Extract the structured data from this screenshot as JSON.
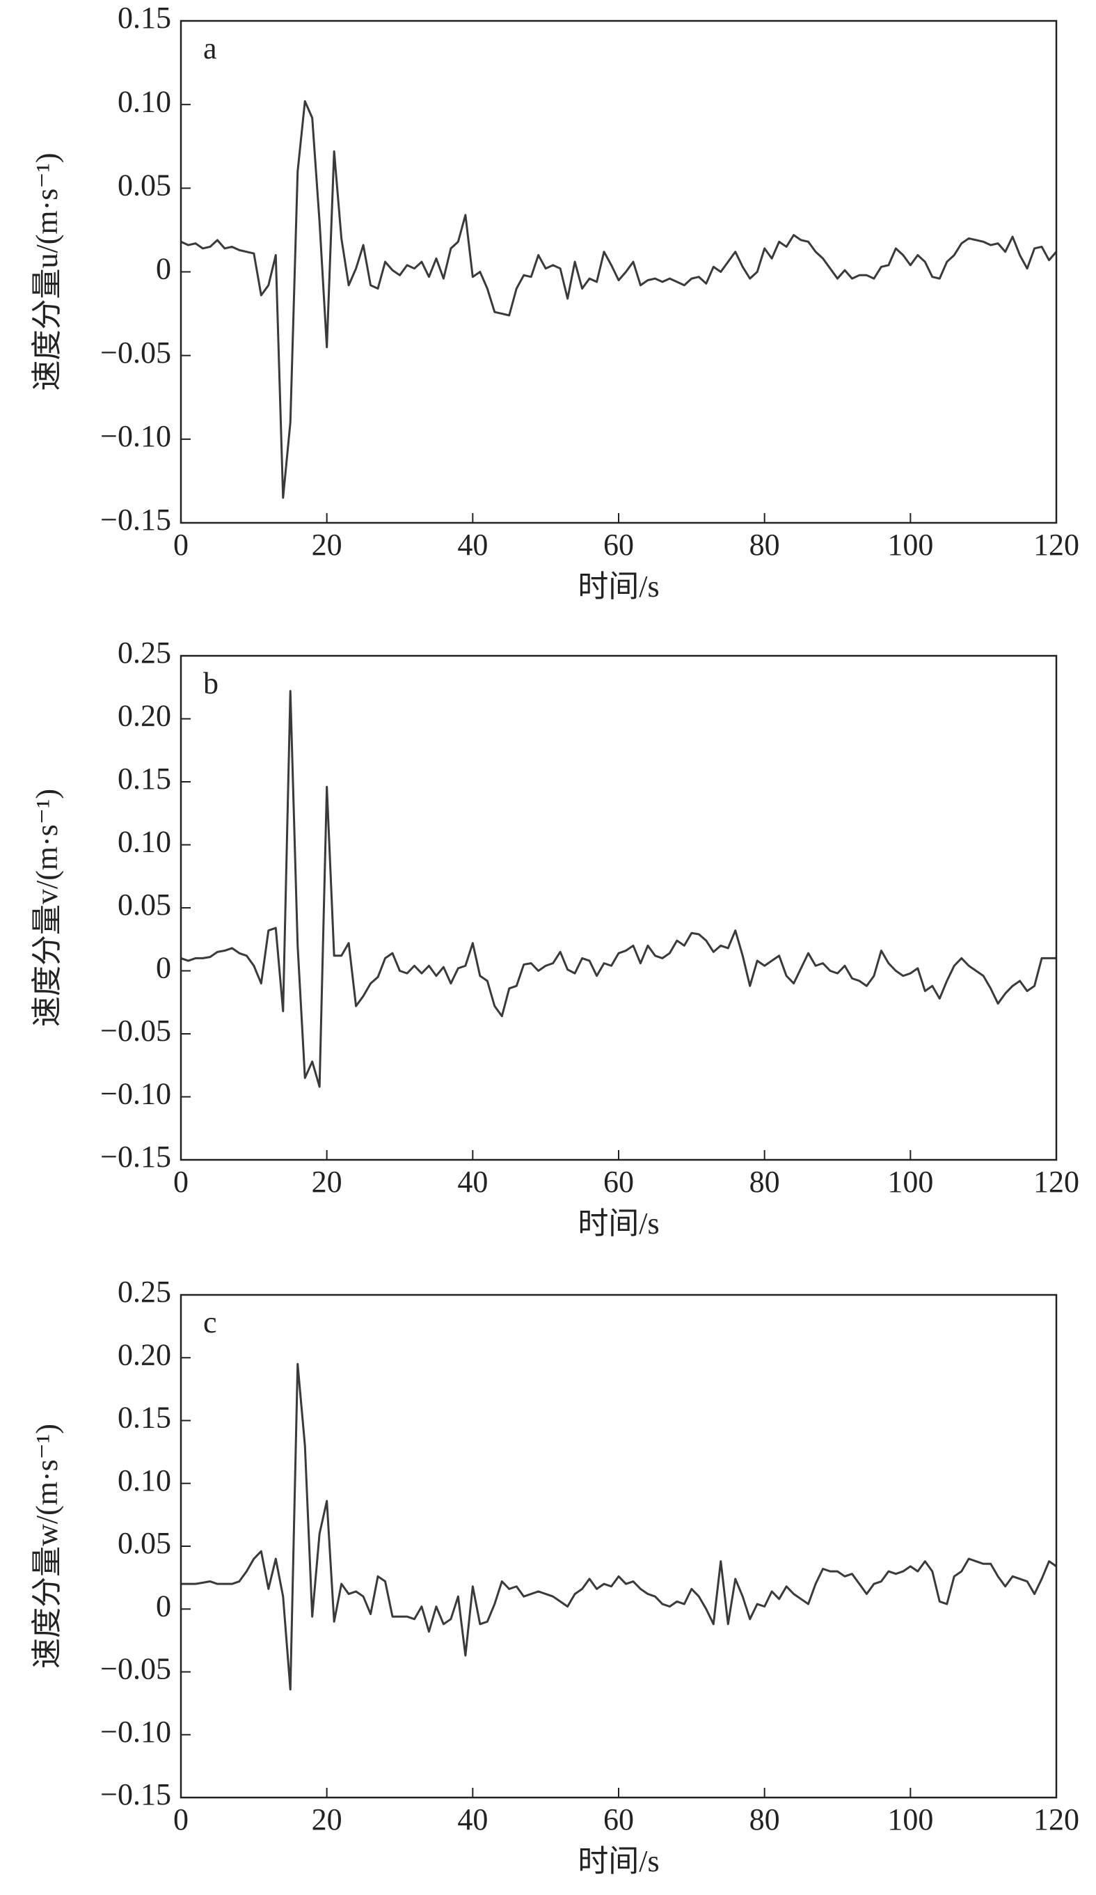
{
  "chart_data": [
    {
      "type": "line",
      "annotation": "a",
      "xlabel": "时间/s",
      "ylabel": "速度分量u/(m·s⁻¹)",
      "color": "#3a3a3a",
      "xlim": [
        0,
        120
      ],
      "xticks": [
        0,
        20,
        40,
        60,
        80,
        100,
        120
      ],
      "ylim": [
        -0.15,
        0.15
      ],
      "yticks": [
        {
          "value": -0.15,
          "label": "−0.15"
        },
        {
          "value": -0.1,
          "label": "−0.10"
        },
        {
          "value": -0.05,
          "label": "−0.05"
        },
        0,
        0.05,
        {
          "value": 0.1,
          "label": "0.10"
        },
        0.15
      ],
      "x": [
        0,
        1,
        2,
        3,
        4,
        5,
        6,
        7,
        8,
        9,
        10,
        11,
        12,
        13,
        14,
        15,
        16,
        17,
        18,
        19,
        20,
        21,
        22,
        23,
        24,
        25,
        26,
        27,
        28,
        29,
        30,
        31,
        32,
        33,
        34,
        35,
        36,
        37,
        38,
        39,
        40,
        41,
        42,
        43,
        44,
        45,
        46,
        47,
        48,
        49,
        50,
        51,
        52,
        53,
        54,
        55,
        56,
        57,
        58,
        59,
        60,
        61,
        62,
        63,
        64,
        65,
        66,
        67,
        68,
        69,
        70,
        71,
        72,
        73,
        74,
        75,
        76,
        77,
        78,
        79,
        80,
        81,
        82,
        83,
        84,
        85,
        86,
        87,
        88,
        89,
        90,
        91,
        92,
        93,
        94,
        95,
        96,
        97,
        98,
        99,
        100,
        101,
        102,
        103,
        104,
        105,
        106,
        107,
        108,
        109,
        110,
        111,
        112,
        113,
        114,
        115,
        116,
        117,
        118,
        119,
        120
      ],
      "values": [
        0.018,
        0.016,
        0.017,
        0.014,
        0.015,
        0.019,
        0.014,
        0.015,
        0.013,
        0.012,
        0.011,
        -0.014,
        -0.008,
        0.01,
        -0.135,
        -0.09,
        0.06,
        0.102,
        0.092,
        0.03,
        -0.045,
        0.072,
        0.02,
        -0.008,
        0.002,
        0.016,
        -0.008,
        -0.01,
        0.006,
        0.001,
        -0.002,
        0.004,
        0.002,
        0.006,
        -0.003,
        0.008,
        -0.004,
        0.014,
        0.018,
        0.034,
        -0.003,
        0.0,
        -0.01,
        -0.024,
        -0.025,
        -0.026,
        -0.01,
        -0.002,
        -0.003,
        0.01,
        0.002,
        0.004,
        0.002,
        -0.016,
        0.006,
        -0.01,
        -0.004,
        -0.006,
        0.012,
        0.004,
        -0.005,
        0.0,
        0.006,
        -0.008,
        -0.005,
        -0.004,
        -0.006,
        -0.004,
        -0.006,
        -0.008,
        -0.004,
        -0.003,
        -0.007,
        0.003,
        0.0,
        0.006,
        0.012,
        0.003,
        -0.004,
        0.0,
        0.014,
        0.008,
        0.018,
        0.015,
        0.022,
        0.019,
        0.018,
        0.012,
        0.008,
        0.002,
        -0.004,
        0.001,
        -0.004,
        -0.002,
        -0.002,
        -0.004,
        0.003,
        0.004,
        0.014,
        0.01,
        0.004,
        0.01,
        0.006,
        -0.003,
        -0.004,
        0.006,
        0.01,
        0.017,
        0.02,
        0.019,
        0.018,
        0.016,
        0.017,
        0.012,
        0.021,
        0.01,
        0.002,
        0.014,
        0.015,
        0.007,
        0.012
      ]
    },
    {
      "type": "line",
      "annotation": "b",
      "xlabel": "时间/s",
      "ylabel": "速度分量v/(m·s⁻¹)",
      "color": "#3a3a3a",
      "xlim": [
        0,
        120
      ],
      "xticks": [
        0,
        20,
        40,
        60,
        80,
        100,
        120
      ],
      "ylim": [
        -0.15,
        0.25
      ],
      "yticks": [
        {
          "value": -0.15,
          "label": "−0.15"
        },
        {
          "value": -0.1,
          "label": "−0.10"
        },
        {
          "value": -0.05,
          "label": "−0.05"
        },
        0,
        0.05,
        {
          "value": 0.1,
          "label": "0.10"
        },
        0.15,
        {
          "value": 0.2,
          "label": "0.20"
        },
        0.25
      ],
      "x": [
        0,
        1,
        2,
        3,
        4,
        5,
        6,
        7,
        8,
        9,
        10,
        11,
        12,
        13,
        14,
        15,
        16,
        17,
        18,
        19,
        20,
        21,
        22,
        23,
        24,
        25,
        26,
        27,
        28,
        29,
        30,
        31,
        32,
        33,
        34,
        35,
        36,
        37,
        38,
        39,
        40,
        41,
        42,
        43,
        44,
        45,
        46,
        47,
        48,
        49,
        50,
        51,
        52,
        53,
        54,
        55,
        56,
        57,
        58,
        59,
        60,
        61,
        62,
        63,
        64,
        65,
        66,
        67,
        68,
        69,
        70,
        71,
        72,
        73,
        74,
        75,
        76,
        77,
        78,
        79,
        80,
        81,
        82,
        83,
        84,
        85,
        86,
        87,
        88,
        89,
        90,
        91,
        92,
        93,
        94,
        95,
        96,
        97,
        98,
        99,
        100,
        101,
        102,
        103,
        104,
        105,
        106,
        107,
        108,
        109,
        110,
        111,
        112,
        113,
        114,
        115,
        116,
        117,
        118,
        119,
        120
      ],
      "values": [
        0.01,
        0.008,
        0.01,
        0.01,
        0.011,
        0.015,
        0.016,
        0.018,
        0.014,
        0.012,
        0.004,
        -0.01,
        0.032,
        0.034,
        -0.032,
        0.222,
        0.02,
        -0.085,
        -0.072,
        -0.092,
        0.146,
        0.012,
        0.012,
        0.022,
        -0.028,
        -0.02,
        -0.01,
        -0.005,
        0.01,
        0.014,
        0.0,
        -0.002,
        0.004,
        -0.002,
        0.004,
        -0.004,
        0.003,
        -0.01,
        0.002,
        0.004,
        0.022,
        -0.004,
        -0.008,
        -0.028,
        -0.036,
        -0.014,
        -0.012,
        0.005,
        0.006,
        0.0,
        0.004,
        0.006,
        0.015,
        0.001,
        -0.002,
        0.01,
        0.008,
        -0.004,
        0.006,
        0.004,
        0.014,
        0.016,
        0.02,
        0.006,
        0.02,
        0.012,
        0.01,
        0.014,
        0.024,
        0.02,
        0.03,
        0.029,
        0.024,
        0.015,
        0.02,
        0.018,
        0.032,
        0.012,
        -0.012,
        0.008,
        0.004,
        0.008,
        0.012,
        -0.004,
        -0.01,
        0.002,
        0.014,
        0.004,
        0.006,
        0.0,
        -0.002,
        0.004,
        -0.006,
        -0.008,
        -0.012,
        -0.004,
        0.016,
        0.006,
        0.0,
        -0.004,
        -0.002,
        0.002,
        -0.016,
        -0.012,
        -0.022,
        -0.008,
        0.004,
        0.01,
        0.004,
        0.0,
        -0.004,
        -0.014,
        -0.026,
        -0.018,
        -0.012,
        -0.008,
        -0.016,
        -0.012,
        0.01,
        0.01,
        0.01
      ]
    },
    {
      "type": "line",
      "annotation": "c",
      "xlabel": "时间/s",
      "ylabel": "速度分量w/(m·s⁻¹)",
      "color": "#3a3a3a",
      "xlim": [
        0,
        120
      ],
      "xticks": [
        0,
        20,
        40,
        60,
        80,
        100,
        120
      ],
      "ylim": [
        -0.15,
        0.25
      ],
      "yticks": [
        {
          "value": -0.15,
          "label": "−0.15"
        },
        {
          "value": -0.1,
          "label": "−0.10"
        },
        {
          "value": -0.05,
          "label": "−0.05"
        },
        0,
        0.05,
        {
          "value": 0.1,
          "label": "0.10"
        },
        0.15,
        {
          "value": 0.2,
          "label": "0.20"
        },
        0.25
      ],
      "x": [
        0,
        1,
        2,
        3,
        4,
        5,
        6,
        7,
        8,
        9,
        10,
        11,
        12,
        13,
        14,
        15,
        16,
        17,
        18,
        19,
        20,
        21,
        22,
        23,
        24,
        25,
        26,
        27,
        28,
        29,
        30,
        31,
        32,
        33,
        34,
        35,
        36,
        37,
        38,
        39,
        40,
        41,
        42,
        43,
        44,
        45,
        46,
        47,
        48,
        49,
        50,
        51,
        52,
        53,
        54,
        55,
        56,
        57,
        58,
        59,
        60,
        61,
        62,
        63,
        64,
        65,
        66,
        67,
        68,
        69,
        70,
        71,
        72,
        73,
        74,
        75,
        76,
        77,
        78,
        79,
        80,
        81,
        82,
        83,
        84,
        85,
        86,
        87,
        88,
        89,
        90,
        91,
        92,
        93,
        94,
        95,
        96,
        97,
        98,
        99,
        100,
        101,
        102,
        103,
        104,
        105,
        106,
        107,
        108,
        109,
        110,
        111,
        112,
        113,
        114,
        115,
        116,
        117,
        118,
        119,
        120
      ],
      "values": [
        0.02,
        0.02,
        0.02,
        0.021,
        0.022,
        0.02,
        0.02,
        0.02,
        0.022,
        0.03,
        0.04,
        0.046,
        0.016,
        0.04,
        0.01,
        -0.064,
        0.195,
        0.13,
        -0.006,
        0.06,
        0.086,
        -0.01,
        0.02,
        0.012,
        0.014,
        0.01,
        -0.004,
        0.026,
        0.022,
        -0.006,
        -0.006,
        -0.006,
        -0.008,
        0.002,
        -0.018,
        0.002,
        -0.012,
        -0.008,
        0.01,
        -0.037,
        0.018,
        -0.012,
        -0.01,
        0.004,
        0.022,
        0.016,
        0.018,
        0.01,
        0.012,
        0.014,
        0.012,
        0.01,
        0.006,
        0.002,
        0.012,
        0.016,
        0.024,
        0.016,
        0.02,
        0.018,
        0.026,
        0.02,
        0.022,
        0.016,
        0.012,
        0.01,
        0.004,
        0.002,
        0.006,
        0.004,
        0.016,
        0.01,
        0.0,
        -0.012,
        0.038,
        -0.012,
        0.024,
        0.01,
        -0.008,
        0.004,
        0.002,
        0.014,
        0.008,
        0.018,
        0.012,
        0.008,
        0.004,
        0.02,
        0.032,
        0.03,
        0.03,
        0.026,
        0.028,
        0.02,
        0.012,
        0.02,
        0.022,
        0.03,
        0.028,
        0.03,
        0.034,
        0.03,
        0.038,
        0.03,
        0.006,
        0.004,
        0.026,
        0.03,
        0.04,
        0.038,
        0.036,
        0.036,
        0.026,
        0.018,
        0.026,
        0.024,
        0.022,
        0.012,
        0.024,
        0.038,
        0.034
      ]
    }
  ]
}
